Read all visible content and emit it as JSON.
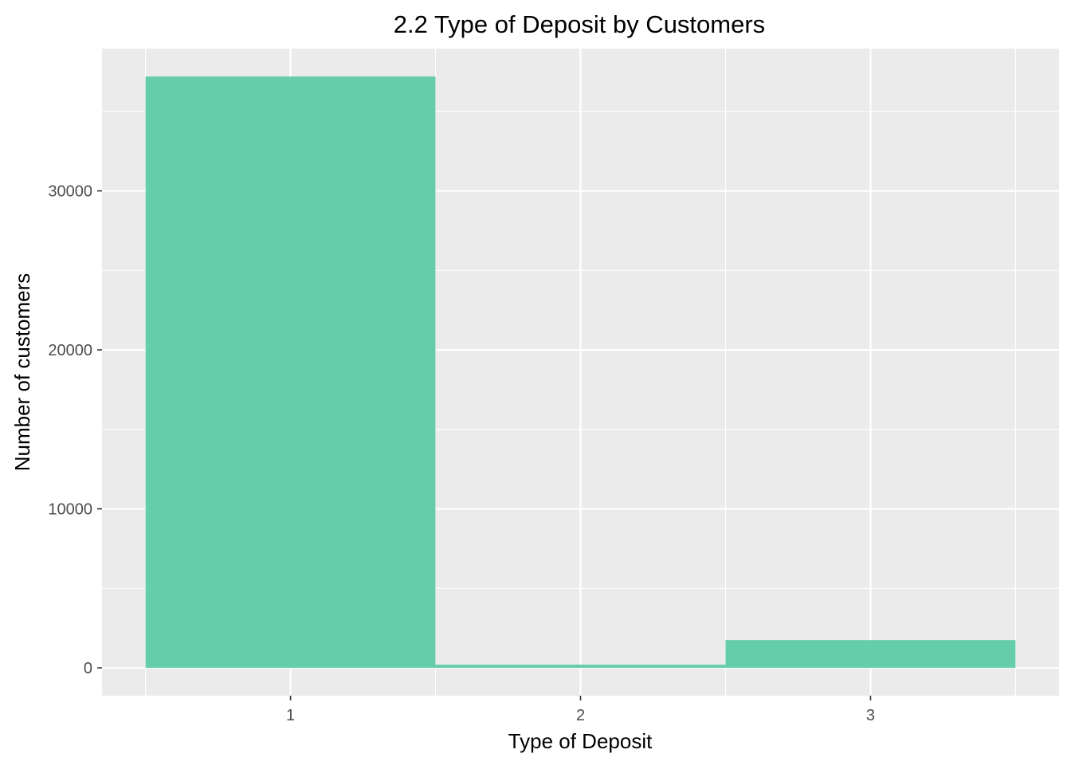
{
  "chart_data": {
    "type": "bar",
    "title": "2.2 Type of Deposit by Customers",
    "xlabel": "Type of Deposit",
    "ylabel": "Number of customers",
    "categories": [
      "1",
      "2",
      "3"
    ],
    "values": [
      37200,
      200,
      1750
    ],
    "ylim": [
      -1750,
      38950
    ],
    "yticks": [
      0,
      10000,
      20000,
      30000
    ],
    "ytick_labels": [
      "0",
      "10000",
      "20000",
      "30000"
    ],
    "grid": true,
    "legend": "none",
    "colors": {
      "bar": "#66CDAA",
      "panel": "#EBEBEB",
      "grid": "#FFFFFF",
      "tick_label": "#4D4D4D",
      "tick_mark": "#333333"
    }
  }
}
